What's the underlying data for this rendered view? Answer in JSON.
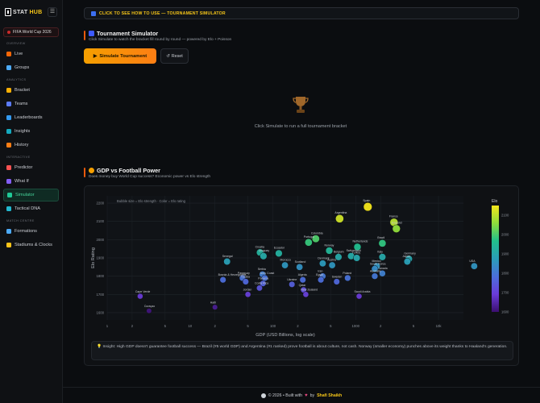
{
  "brand": {
    "name_a": "STAT",
    "name_b": "HUB"
  },
  "competition": "FIFA World Cup 2026",
  "sidebar": {
    "sections": [
      {
        "title": "OVERVIEW",
        "items": [
          {
            "label": "Live",
            "color": "#f76707"
          },
          {
            "label": "Groups",
            "color": "#4dabf7"
          }
        ]
      },
      {
        "title": "ANALYTICS",
        "items": [
          {
            "label": "Bracket",
            "color": "#fab005"
          },
          {
            "label": "Teams",
            "color": "#5c7cfa"
          },
          {
            "label": "Leaderboards",
            "color": "#339af0"
          },
          {
            "label": "Insights",
            "color": "#15aabf"
          },
          {
            "label": "History",
            "color": "#fd7e14"
          }
        ]
      },
      {
        "title": "INTERACTIVE",
        "items": [
          {
            "label": "Predictor",
            "color": "#fa5252"
          },
          {
            "label": "What If",
            "color": "#845ef7"
          },
          {
            "label": "Simulator",
            "color": "#20c997",
            "active": true
          },
          {
            "label": "Tactical DNA",
            "color": "#22b8cf"
          }
        ]
      },
      {
        "title": "MATCH CENTRE",
        "items": [
          {
            "label": "Formations",
            "color": "#4dabf7"
          },
          {
            "label": "Stadiums & Clocks",
            "color": "#fcc419"
          }
        ]
      }
    ]
  },
  "howto": "CLICK TO SEE HOW TO USE — TOURNAMENT SIMULATOR",
  "simulator": {
    "title": "Tournament Simulator",
    "subtitle": "Click Simulate to watch the bracket fill round by round — powered by Elo + Poisson",
    "simulate_label": "Simulate Tournament",
    "reset_label": "Reset",
    "empty_message": "Click Simulate to run a full tournament bracket"
  },
  "gdp": {
    "title": "GDP vs Football Power",
    "subtitle": "Does money buy World Cup success? Economic power vs Elo strength",
    "insight": "Insight: High GDP doesn't guarantee football success — Brazil (#5 world GDP) and Argentina (#1 ranked) prove football is about culture, not cash. Norway (smaller economy) punches above its weight thanks to Haaland's generation."
  },
  "chart_data": {
    "type": "scatter",
    "note": "Bubble size = Elo strength · Color = Elo rating",
    "xlabel": "GDP (USD Billions, log scale)",
    "ylabel": "Elo Rating",
    "x_scale": "log",
    "xlim": [
      1,
      20000
    ],
    "ylim": [
      1560,
      2240
    ],
    "x_ticks": [
      {
        "v": 1,
        "l": "1"
      },
      {
        "v": 2,
        "l": "2"
      },
      {
        "v": 5,
        "l": "5"
      },
      {
        "v": 10,
        "l": "10"
      },
      {
        "v": 20,
        "l": "2"
      },
      {
        "v": 50,
        "l": "5"
      },
      {
        "v": 100,
        "l": "100"
      },
      {
        "v": 200,
        "l": "2"
      },
      {
        "v": 500,
        "l": "5"
      },
      {
        "v": 1000,
        "l": "1000"
      },
      {
        "v": 2000,
        "l": "2"
      },
      {
        "v": 5000,
        "l": "5"
      },
      {
        "v": 10000,
        "l": "10k"
      }
    ],
    "y_ticks": [
      1600,
      1700,
      1800,
      1900,
      2000,
      2100,
      2200
    ],
    "colorbar": {
      "title": "Elo",
      "min": 1600,
      "max": 2150,
      "ticks": [
        1700,
        1800,
        1900,
        2000,
        2100
      ]
    },
    "colorscale": [
      "#3b0f70",
      "#6a3bd8",
      "#4b6fd9",
      "#2a9db8",
      "#21c08b",
      "#8fdc3c",
      "#f5e61b"
    ],
    "grid": true,
    "points": [
      {
        "name": "Spain",
        "x": 1400,
        "y": 2180
      },
      {
        "name": "Argentina",
        "x": 640,
        "y": 2115
      },
      {
        "name": "France",
        "x": 2900,
        "y": 2095
      },
      {
        "name": "England",
        "x": 3100,
        "y": 2060
      },
      {
        "name": "Brazil",
        "x": 2100,
        "y": 1980
      },
      {
        "name": "Colombia",
        "x": 330,
        "y": 2005
      },
      {
        "name": "Portugal",
        "x": 270,
        "y": 1985
      },
      {
        "name": "Netherlands",
        "x": 1050,
        "y": 1960
      },
      {
        "name": "Norway",
        "x": 480,
        "y": 1940
      },
      {
        "name": "Germany",
        "x": 4400,
        "y": 1895
      },
      {
        "name": "Croatia",
        "x": 70,
        "y": 1930
      },
      {
        "name": "Ecuador",
        "x": 118,
        "y": 1925
      },
      {
        "name": "Uruguay",
        "x": 77,
        "y": 1910
      },
      {
        "name": "Belgium",
        "x": 620,
        "y": 1905
      },
      {
        "name": "Switzerland",
        "x": 880,
        "y": 1910
      },
      {
        "name": "Turkey",
        "x": 1030,
        "y": 1900
      },
      {
        "name": "Italy",
        "x": 2100,
        "y": 1905
      },
      {
        "name": "Japan",
        "x": 4200,
        "y": 1880
      },
      {
        "name": "Senegal",
        "x": 28,
        "y": 1880
      },
      {
        "name": "Morocco",
        "x": 140,
        "y": 1860
      },
      {
        "name": "Denmark",
        "x": 400,
        "y": 1870
      },
      {
        "name": "Austria",
        "x": 520,
        "y": 1860
      },
      {
        "name": "Mexico",
        "x": 1800,
        "y": 1855
      },
      {
        "name": "Canada",
        "x": 2100,
        "y": 1815
      },
      {
        "name": "Scotland",
        "x": 210,
        "y": 1850
      },
      {
        "name": "South Korea",
        "x": 1700,
        "y": 1840
      },
      {
        "name": "USA",
        "x": 27000,
        "y": 1855
      },
      {
        "name": "Serbia",
        "x": 75,
        "y": 1810
      },
      {
        "name": "Ivory Coast",
        "x": 80,
        "y": 1790
      },
      {
        "name": "Australia",
        "x": 1700,
        "y": 1800
      },
      {
        "name": "Iran",
        "x": 400,
        "y": 1800
      },
      {
        "name": "Paraguay",
        "x": 43,
        "y": 1790
      },
      {
        "name": "Tunisia",
        "x": 47,
        "y": 1770
      },
      {
        "name": "Poland",
        "x": 800,
        "y": 1790
      },
      {
        "name": "Egypt",
        "x": 380,
        "y": 1780
      },
      {
        "name": "Bosnia & Herzegovina",
        "x": 25,
        "y": 1780
      },
      {
        "name": "Panama",
        "x": 76,
        "y": 1760
      },
      {
        "name": "Algeria",
        "x": 230,
        "y": 1780
      },
      {
        "name": "Sweden",
        "x": 590,
        "y": 1770
      },
      {
        "name": "Ukraine",
        "x": 170,
        "y": 1755
      },
      {
        "name": "Costa Rica",
        "x": 69,
        "y": 1735
      },
      {
        "name": "Qatar",
        "x": 235,
        "y": 1725
      },
      {
        "name": "New Zealand",
        "x": 250,
        "y": 1700
      },
      {
        "name": "Saudi Arabia",
        "x": 1100,
        "y": 1690
      },
      {
        "name": "Jordan",
        "x": 50,
        "y": 1700
      },
      {
        "name": "Cape Verde",
        "x": 2.5,
        "y": 1690
      },
      {
        "name": "Haiti",
        "x": 20,
        "y": 1630
      },
      {
        "name": "Curaçao",
        "x": 3.2,
        "y": 1610
      }
    ]
  },
  "footer": {
    "text": "© 2026 • Built with",
    "by": "by",
    "author": "Shafi Shaikh",
    "heart": "♥"
  }
}
